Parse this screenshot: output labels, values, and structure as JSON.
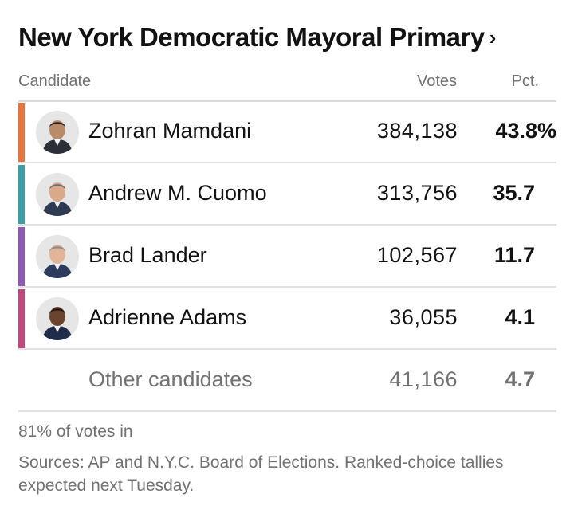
{
  "title": "New York Democratic Mayoral Primary",
  "title_chevron": "›",
  "columns": {
    "candidate": "Candidate",
    "votes": "Votes",
    "pct": "Pct."
  },
  "chart_data": {
    "type": "table",
    "title": "New York Democratic Mayoral Primary",
    "columns": [
      "Candidate",
      "Votes",
      "Pct."
    ],
    "rows": [
      {
        "name": "Zohran Mamdani",
        "votes": "384,138",
        "pct": "43.8%",
        "color": "#e8743b",
        "has_avatar": true
      },
      {
        "name": "Andrew M. Cuomo",
        "votes": "313,756",
        "pct": "35.7",
        "color": "#3a9ea5",
        "has_avatar": true
      },
      {
        "name": "Brad Lander",
        "votes": "102,567",
        "pct": "11.7",
        "color": "#8e58b5",
        "has_avatar": true
      },
      {
        "name": "Adrienne Adams",
        "votes": "36,055",
        "pct": "4.1",
        "color": "#c4467e",
        "has_avatar": true
      },
      {
        "name": "Other candidates",
        "votes": "41,166",
        "pct": "4.7",
        "color": "",
        "has_avatar": false
      }
    ]
  },
  "footer": {
    "reporting": "81% of votes in",
    "sources": "Sources: AP and N.Y.C. Board of Elections. Ranked-choice tallies expected next Tuesday."
  }
}
